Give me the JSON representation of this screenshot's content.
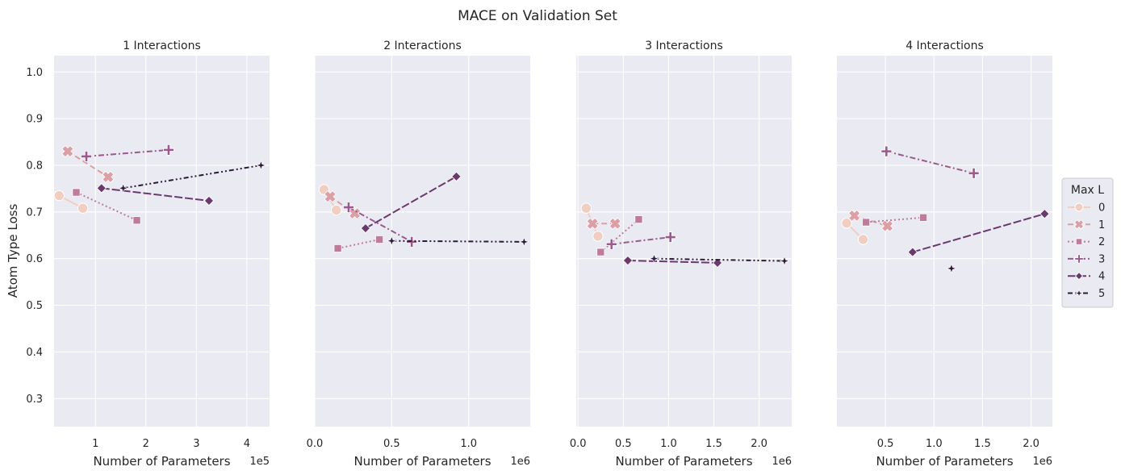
{
  "figure": {
    "title": "MACE on Validation Set",
    "ylabel": "Atom Type Loss",
    "yticks": [
      "0.3",
      "0.4",
      "0.5",
      "0.6",
      "0.7",
      "0.8",
      "0.9",
      "1.0"
    ]
  },
  "legend": {
    "title": "Max L",
    "placement": "right"
  },
  "chart_data": {
    "type": "line",
    "ylim": [
      0.24,
      1.035
    ],
    "series_styles": [
      {
        "L": "0",
        "color": "#f0cec2",
        "marker": "circle",
        "dash": "solid"
      },
      {
        "L": "1",
        "color": "#db9fa6",
        "marker": "x",
        "dash": "dashed"
      },
      {
        "L": "2",
        "color": "#be7b9b",
        "marker": "square",
        "dash": "dotted"
      },
      {
        "L": "3",
        "color": "#9a5a8e",
        "marker": "plus",
        "dash": "dashdot"
      },
      {
        "L": "4",
        "color": "#6a3a6d",
        "marker": "diamond",
        "dash": "longdash"
      },
      {
        "L": "5",
        "color": "#2b1a3b",
        "marker": "star",
        "dash": "dashdotdot"
      }
    ],
    "panels": [
      {
        "title": "1 Interactions",
        "xlabel": "Number of Parameters",
        "offset_text": "1e5",
        "xlim": [
          0.18,
          4.45
        ],
        "xticks": [
          1,
          2,
          3,
          4
        ],
        "xtick_labels": [
          "1",
          "2",
          "3",
          "4"
        ],
        "series": [
          {
            "name": "0",
            "x": [
              0.28,
              0.75
            ],
            "y": [
              0.735,
              0.708
            ]
          },
          {
            "name": "1",
            "x": [
              0.45,
              1.25
            ],
            "y": [
              0.83,
              0.775
            ]
          },
          {
            "name": "2",
            "x": [
              0.62,
              1.82
            ],
            "y": [
              0.742,
              0.682
            ]
          },
          {
            "name": "3",
            "x": [
              0.82,
              2.45
            ],
            "y": [
              0.819,
              0.833
            ]
          },
          {
            "name": "4",
            "x": [
              1.12,
              3.25
            ],
            "y": [
              0.751,
              0.724
            ]
          },
          {
            "name": "5",
            "x": [
              1.55,
              4.28
            ],
            "y": [
              0.751,
              0.8
            ]
          }
        ]
      },
      {
        "title": "2 Interactions",
        "xlabel": "Number of Parameters",
        "offset_text": "1e6",
        "xlim": [
          0.0,
          1.4
        ],
        "xticks": [
          0.0,
          0.5,
          1.0
        ],
        "xtick_labels": [
          "0.0",
          "0.5",
          "1.0"
        ],
        "series": [
          {
            "name": "0",
            "x": [
              0.06,
              0.14
            ],
            "y": [
              0.748,
              0.704
            ]
          },
          {
            "name": "1",
            "x": [
              0.1,
              0.26
            ],
            "y": [
              0.733,
              0.697
            ]
          },
          {
            "name": "2",
            "x": [
              0.15,
              0.42
            ],
            "y": [
              0.622,
              0.641
            ]
          },
          {
            "name": "3",
            "x": [
              0.22,
              0.63
            ],
            "y": [
              0.71,
              0.636
            ]
          },
          {
            "name": "4",
            "x": [
              0.33,
              0.92
            ],
            "y": [
              0.665,
              0.776
            ]
          },
          {
            "name": "5",
            "x": [
              0.5,
              1.36
            ],
            "y": [
              0.638,
              0.636
            ]
          }
        ]
      },
      {
        "title": "3 Interactions",
        "xlabel": "Number of Parameters",
        "offset_text": "1e6",
        "xlim": [
          -0.02,
          2.36
        ],
        "xticks": [
          0.0,
          0.5,
          1.0,
          1.5,
          2.0
        ],
        "xtick_labels": [
          "0.0",
          "0.5",
          "1.0",
          "1.5",
          "2.0"
        ],
        "series": [
          {
            "name": "0",
            "x": [
              0.09,
              0.22
            ],
            "y": [
              0.708,
              0.648
            ]
          },
          {
            "name": "1",
            "x": [
              0.16,
              0.41
            ],
            "y": [
              0.675,
              0.675
            ]
          },
          {
            "name": "2",
            "x": [
              0.25,
              0.67
            ],
            "y": [
              0.614,
              0.684
            ]
          },
          {
            "name": "3",
            "x": [
              0.37,
              1.02
            ],
            "y": [
              0.631,
              0.646
            ]
          },
          {
            "name": "4",
            "x": [
              0.55,
              1.54
            ],
            "y": [
              0.596,
              0.591
            ]
          },
          {
            "name": "5",
            "x": [
              0.84,
              2.28
            ],
            "y": [
              0.6,
              0.595
            ]
          }
        ]
      },
      {
        "title": "4 Interactions",
        "xlabel": "Number of Parameters",
        "offset_text": "1e6",
        "xlim": [
          0.0,
          2.22
        ],
        "xticks": [
          0.5,
          1.0,
          1.5,
          2.0
        ],
        "xtick_labels": [
          "0.5",
          "1.0",
          "1.5",
          "2.0"
        ],
        "series": [
          {
            "name": "0",
            "x": [
              0.1,
              0.27
            ],
            "y": [
              0.676,
              0.641
            ]
          },
          {
            "name": "1",
            "x": [
              0.18,
              0.52
            ],
            "y": [
              0.692,
              0.67
            ]
          },
          {
            "name": "2",
            "x": [
              0.3,
              0.89
            ],
            "y": [
              0.678,
              0.688
            ]
          },
          {
            "name": "3",
            "x": [
              0.51,
              1.41
            ],
            "y": [
              0.83,
              0.783
            ]
          },
          {
            "name": "4",
            "x": [
              0.78,
              2.14
            ],
            "y": [
              0.614,
              0.696
            ]
          },
          {
            "name": "5",
            "x": [
              1.18
            ],
            "y": [
              0.579
            ]
          }
        ]
      }
    ]
  }
}
